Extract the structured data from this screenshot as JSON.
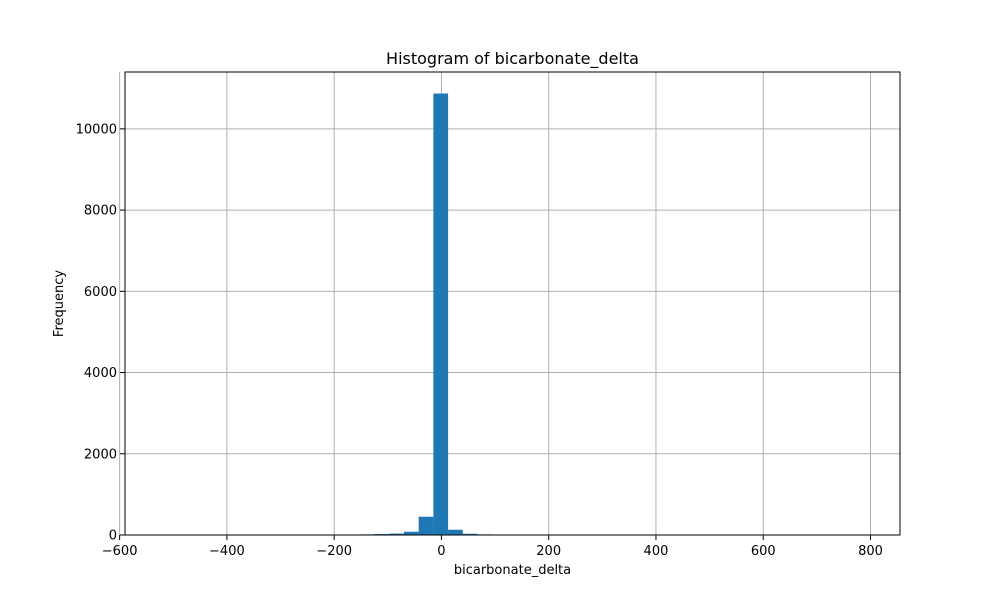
{
  "chart_data": {
    "type": "bar",
    "title": "Histogram of bicarbonate_delta",
    "xlabel": "bicarbonate_delta",
    "ylabel": "Frequency",
    "xlim": [
      -590,
      855
    ],
    "ylim": [
      0,
      11400
    ],
    "xticks": [
      -600,
      -400,
      -200,
      0,
      200,
      400,
      600,
      800
    ],
    "yticks": [
      0,
      2000,
      4000,
      6000,
      8000,
      10000
    ],
    "xtick_labels": [
      "−600",
      "−400",
      "−200",
      "0",
      "200",
      "400",
      "600",
      "800"
    ],
    "ytick_labels": [
      "0",
      "2000",
      "4000",
      "6000",
      "8000",
      "10000"
    ],
    "grid": true,
    "bar_color": "#1f77b4",
    "bins": [
      {
        "x0": -563.0,
        "x1": -535.6,
        "value": 2
      },
      {
        "x0": -535.6,
        "x1": -508.2,
        "value": 1
      },
      {
        "x0": -508.2,
        "x1": -480.8,
        "value": 1
      },
      {
        "x0": -480.8,
        "x1": -453.4,
        "value": 1
      },
      {
        "x0": -453.4,
        "x1": -426.0,
        "value": 1
      },
      {
        "x0": -426.0,
        "x1": -398.6,
        "value": 1
      },
      {
        "x0": -398.6,
        "x1": -371.2,
        "value": 1
      },
      {
        "x0": -371.2,
        "x1": -343.8,
        "value": 1
      },
      {
        "x0": -343.8,
        "x1": -316.4,
        "value": 2
      },
      {
        "x0": -316.4,
        "x1": -289.0,
        "value": 2
      },
      {
        "x0": -289.0,
        "x1": -261.6,
        "value": 2
      },
      {
        "x0": -261.6,
        "x1": -234.2,
        "value": 3
      },
      {
        "x0": -234.2,
        "x1": -206.8,
        "value": 4
      },
      {
        "x0": -206.8,
        "x1": -179.4,
        "value": 5
      },
      {
        "x0": -179.4,
        "x1": -152.0,
        "value": 8
      },
      {
        "x0": -152.0,
        "x1": -124.6,
        "value": 15
      },
      {
        "x0": -124.6,
        "x1": -97.2,
        "value": 25
      },
      {
        "x0": -97.2,
        "x1": -69.8,
        "value": 35
      },
      {
        "x0": -69.8,
        "x1": -42.4,
        "value": 80
      },
      {
        "x0": -42.4,
        "x1": -15.0,
        "value": 450
      },
      {
        "x0": -15.0,
        "x1": 12.4,
        "value": 10870
      },
      {
        "x0": 12.4,
        "x1": 39.8,
        "value": 130
      },
      {
        "x0": 39.8,
        "x1": 67.2,
        "value": 30
      },
      {
        "x0": 67.2,
        "x1": 94.6,
        "value": 15
      },
      {
        "x0": 94.6,
        "x1": 122.0,
        "value": 6
      },
      {
        "x0": 122.0,
        "x1": 149.4,
        "value": 4
      },
      {
        "x0": 149.4,
        "x1": 176.8,
        "value": 3
      },
      {
        "x0": 176.8,
        "x1": 204.2,
        "value": 2
      },
      {
        "x0": 204.2,
        "x1": 231.6,
        "value": 2
      },
      {
        "x0": 231.6,
        "x1": 259.0,
        "value": 2
      },
      {
        "x0": 259.0,
        "x1": 286.4,
        "value": 1
      },
      {
        "x0": 286.4,
        "x1": 313.8,
        "value": 1
      },
      {
        "x0": 313.8,
        "x1": 341.2,
        "value": 1
      },
      {
        "x0": 341.2,
        "x1": 368.6,
        "value": 1
      },
      {
        "x0": 368.6,
        "x1": 396.0,
        "value": 1
      },
      {
        "x0": 396.0,
        "x1": 423.4,
        "value": 1
      },
      {
        "x0": 423.4,
        "x1": 450.8,
        "value": 1
      },
      {
        "x0": 450.8,
        "x1": 478.2,
        "value": 1
      },
      {
        "x0": 478.2,
        "x1": 505.6,
        "value": 1
      },
      {
        "x0": 505.6,
        "x1": 533.0,
        "value": 1
      },
      {
        "x0": 533.0,
        "x1": 560.4,
        "value": 1
      },
      {
        "x0": 560.4,
        "x1": 587.8,
        "value": 1
      },
      {
        "x0": 587.8,
        "x1": 615.2,
        "value": 1
      },
      {
        "x0": 615.2,
        "x1": 642.6,
        "value": 1
      },
      {
        "x0": 642.6,
        "x1": 670.0,
        "value": 1
      },
      {
        "x0": 670.0,
        "x1": 697.4,
        "value": 1
      },
      {
        "x0": 697.4,
        "x1": 724.8,
        "value": 1
      },
      {
        "x0": 724.8,
        "x1": 752.2,
        "value": 1
      },
      {
        "x0": 752.2,
        "x1": 779.6,
        "value": 1
      },
      {
        "x0": 779.6,
        "x1": 807.0,
        "value": 1
      }
    ]
  }
}
